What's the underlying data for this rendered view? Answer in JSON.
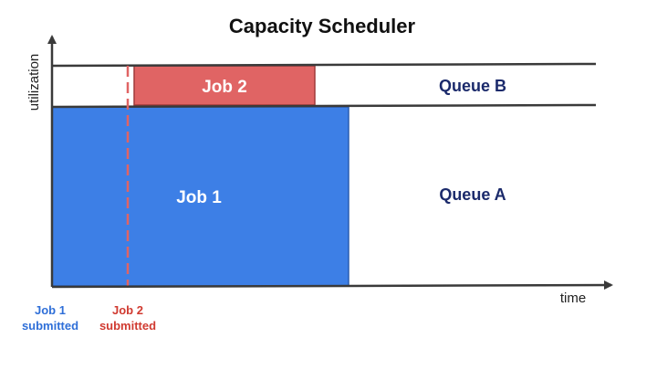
{
  "title": "Capacity Scheduler",
  "axes": {
    "y_label": "utilization",
    "x_label": "time"
  },
  "jobs": {
    "job1": {
      "label": "Job 1"
    },
    "job2": {
      "label": "Job 2"
    }
  },
  "queues": {
    "queue_a": {
      "label": "Queue A"
    },
    "queue_b": {
      "label": "Queue B"
    }
  },
  "events": {
    "job1_submitted": {
      "line1": "Job 1",
      "line2": "submitted"
    },
    "job2_submitted": {
      "line1": "Job 2",
      "line2": "submitted"
    }
  },
  "colors": {
    "job1_fill": "#3d7fe6",
    "job2_fill": "#e06464",
    "queue_text": "#1b2a6b",
    "job1_event": "#2f6fd8",
    "job2_event": "#d03a30",
    "axis": "#3a3a3a"
  }
}
